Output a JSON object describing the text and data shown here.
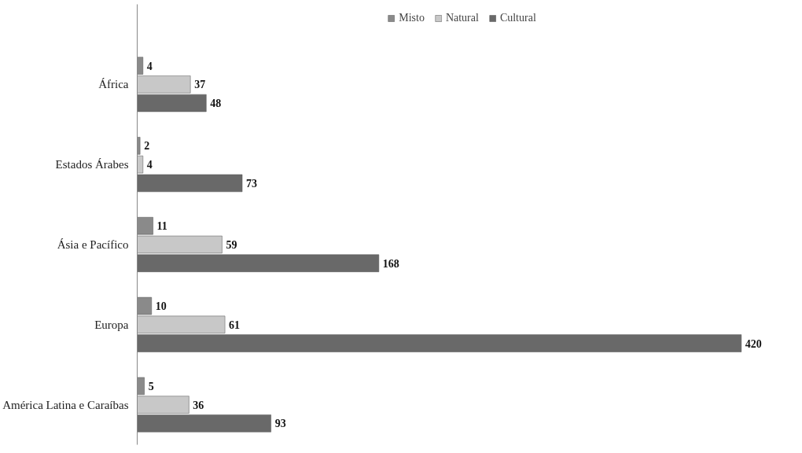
{
  "chart_data": {
    "type": "bar",
    "orientation": "horizontal",
    "categories": [
      "África",
      "Estados Árabes",
      "Ásia e Pacífico",
      "Europa",
      "América Latina e Caraíbas"
    ],
    "series": [
      {
        "name": "Misto",
        "color": "#8a8a8a",
        "values": [
          4,
          2,
          11,
          10,
          5
        ]
      },
      {
        "name": "Natural",
        "color": "#c8c8c8",
        "values": [
          37,
          4,
          59,
          61,
          36
        ]
      },
      {
        "name": "Cultural",
        "color": "#696969",
        "values": [
          48,
          73,
          168,
          420,
          93
        ]
      }
    ],
    "data_labels": true,
    "legend": "top",
    "grid": false
  }
}
